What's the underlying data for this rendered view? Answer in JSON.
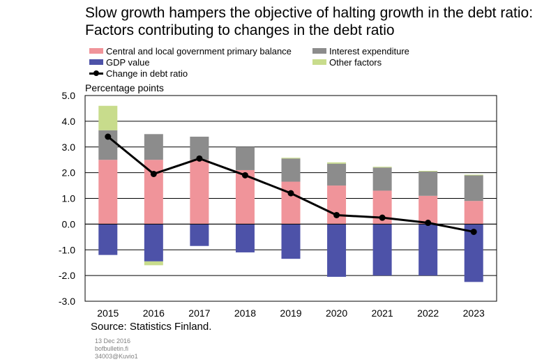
{
  "chart_data": {
    "type": "bar",
    "title": "Slow growth hampers the objective of halting growth in the debt ratio: Factors contributing to changes in the debt ratio",
    "ylabel": "Percentage points",
    "ylim": [
      -3,
      5
    ],
    "yticks": [
      "5.0",
      "4.0",
      "3.0",
      "2.0",
      "1.0",
      "0.0",
      "-1.0",
      "-2.0",
      "-3.0"
    ],
    "ytick_values": [
      5,
      4,
      3,
      2,
      1,
      0,
      -1,
      -2,
      -3
    ],
    "categories": [
      "2015",
      "2016",
      "2017",
      "2018",
      "2019",
      "2020",
      "2021",
      "2022",
      "2023"
    ],
    "stacked": true,
    "grid": true,
    "series": [
      {
        "name": "Central and local government primary balance",
        "type": "bar",
        "color": "#f0949a",
        "values": [
          2.5,
          2.5,
          2.5,
          2.1,
          1.65,
          1.5,
          1.3,
          1.1,
          0.9
        ]
      },
      {
        "name": "Interest expenditure",
        "type": "bar",
        "color": "#8c8c8c",
        "values": [
          1.15,
          1.0,
          0.9,
          0.9,
          0.9,
          0.85,
          0.9,
          0.95,
          1.0
        ]
      },
      {
        "name": "GDP value",
        "type": "bar",
        "color": "#4d52a8",
        "values": [
          -1.2,
          -1.45,
          -0.85,
          -1.1,
          -1.35,
          -2.05,
          -2.0,
          -2.0,
          -2.25
        ]
      },
      {
        "name": "Other factors",
        "type": "bar",
        "color": "#c8dc8c",
        "values": [
          0.95,
          -0.15,
          0.0,
          0.0,
          0.03,
          0.05,
          0.03,
          0.02,
          0.02
        ]
      },
      {
        "name": "Change in debt ratio",
        "type": "line",
        "color": "#000000",
        "values": [
          3.4,
          1.95,
          2.55,
          1.9,
          1.2,
          0.35,
          0.25,
          0.05,
          -0.3
        ]
      }
    ]
  },
  "source": "Source: Statistics Finland.",
  "footer": {
    "date": "13 Dec 2016",
    "site": "bofbulletin.fi",
    "code": "34003@Kuvio1"
  }
}
